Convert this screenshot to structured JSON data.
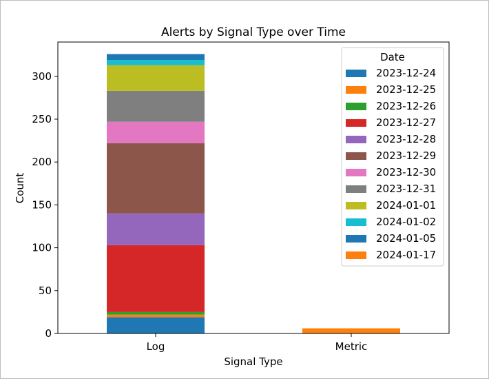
{
  "chart_data": {
    "type": "bar",
    "stacked": true,
    "title": "Alerts by Signal Type over Time",
    "xlabel": "Signal Type",
    "ylabel": "Count",
    "categories": [
      "Log",
      "Metric"
    ],
    "ylim": [
      0,
      340
    ],
    "yticks": [
      0,
      50,
      100,
      150,
      200,
      250,
      300
    ],
    "grid": false,
    "legend": {
      "title": "Date",
      "placement": "top-right"
    },
    "series": [
      {
        "name": "2023-12-24",
        "color": "#1f77b4",
        "values": [
          19,
          0
        ]
      },
      {
        "name": "2023-12-25",
        "color": "#ff7f0e",
        "values": [
          3,
          0
        ]
      },
      {
        "name": "2023-12-26",
        "color": "#2ca02c",
        "values": [
          3,
          0
        ]
      },
      {
        "name": "2023-12-27",
        "color": "#d62728",
        "values": [
          78,
          0
        ]
      },
      {
        "name": "2023-12-28",
        "color": "#9467bd",
        "values": [
          37,
          0
        ]
      },
      {
        "name": "2023-12-29",
        "color": "#8c564b",
        "values": [
          82,
          0
        ]
      },
      {
        "name": "2023-12-30",
        "color": "#e377c2",
        "values": [
          25,
          0
        ]
      },
      {
        "name": "2023-12-31",
        "color": "#7f7f7f",
        "values": [
          36,
          0
        ]
      },
      {
        "name": "2024-01-01",
        "color": "#bcbd22",
        "values": [
          30,
          0
        ]
      },
      {
        "name": "2024-01-02",
        "color": "#17becf",
        "values": [
          6,
          0
        ]
      },
      {
        "name": "2024-01-05",
        "color": "#1f77b4",
        "values": [
          7,
          0
        ]
      },
      {
        "name": "2024-01-17",
        "color": "#ff7f0e",
        "values": [
          0,
          6
        ]
      }
    ]
  }
}
